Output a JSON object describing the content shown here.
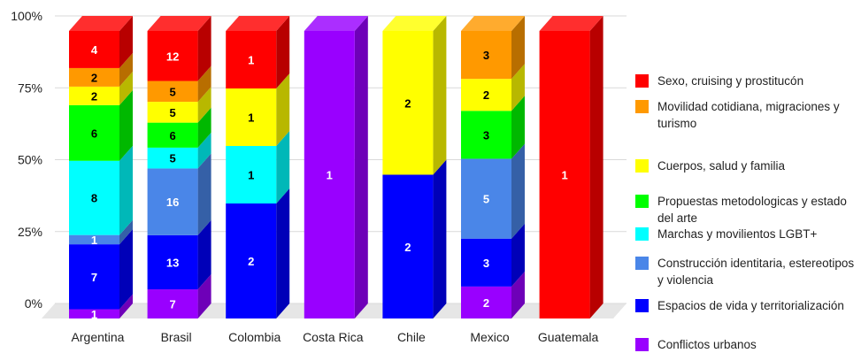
{
  "chart_data": {
    "type": "bar",
    "stacked": true,
    "normalized_percent": true,
    "categories": [
      "Argentina",
      "Brasil",
      "Colombia",
      "Costa Rica",
      "Chile",
      "Mexico",
      "Guatemala"
    ],
    "y_ticks": [
      "0%",
      "25%",
      "50%",
      "75%",
      "100%"
    ],
    "ylim": [
      0,
      100
    ],
    "grid": true,
    "legend_position": "right",
    "series": [
      {
        "name": "Conflictos urbanos",
        "color": "#9900ff",
        "values": [
          1,
          7,
          0,
          1,
          0,
          2,
          0
        ]
      },
      {
        "name": "Espacios de vida y territorialización",
        "color": "#0000ff",
        "values": [
          7,
          13,
          2,
          0,
          2,
          3,
          0
        ]
      },
      {
        "name": "Construcción identitaria, estereotipos y violencia",
        "color": "#4a86e8",
        "values": [
          1,
          16,
          0,
          0,
          0,
          5,
          0
        ]
      },
      {
        "name": "Marchas y movilientos LGBT+",
        "color": "#00ffff",
        "values": [
          8,
          5,
          1,
          0,
          0,
          0,
          0
        ]
      },
      {
        "name": "Propuestas metodologicas y estado del arte",
        "color": "#00ff00",
        "values": [
          6,
          6,
          0,
          0,
          0,
          3,
          0
        ]
      },
      {
        "name": "Cuerpos, salud y familia",
        "color": "#ffff00",
        "values": [
          2,
          5,
          1,
          0,
          2,
          2,
          0
        ]
      },
      {
        "name": "Movilidad cotidiana, migraciones y turismo",
        "color": "#ff9900",
        "values": [
          2,
          5,
          0,
          0,
          0,
          3,
          0
        ]
      },
      {
        "name": "Sexo, cruising y prostitucón",
        "color": "#ff0000",
        "values": [
          4,
          12,
          1,
          0,
          0,
          0,
          1
        ]
      }
    ]
  },
  "legend": {
    "items": [
      {
        "label": "Sexo, cruising y prostitucón",
        "color": "#ff0000"
      },
      {
        "label": "Movilidad cotidiana, migraciones y turismo",
        "color": "#ff9900"
      },
      {
        "label": "Cuerpos, salud y familia",
        "color": "#ffff00"
      },
      {
        "label": "Propuestas metodologicas y estado del arte",
        "color": "#00ff00"
      },
      {
        "label": "Marchas y movilientos LGBT+",
        "color": "#00ffff"
      },
      {
        "label": "Construcción identitaria, estereotipos y violencia",
        "color": "#4a86e8"
      },
      {
        "label": "Espacios de vida y territorialización",
        "color": "#0000ff"
      },
      {
        "label": "Conflictos urbanos",
        "color": "#9900ff"
      }
    ]
  }
}
